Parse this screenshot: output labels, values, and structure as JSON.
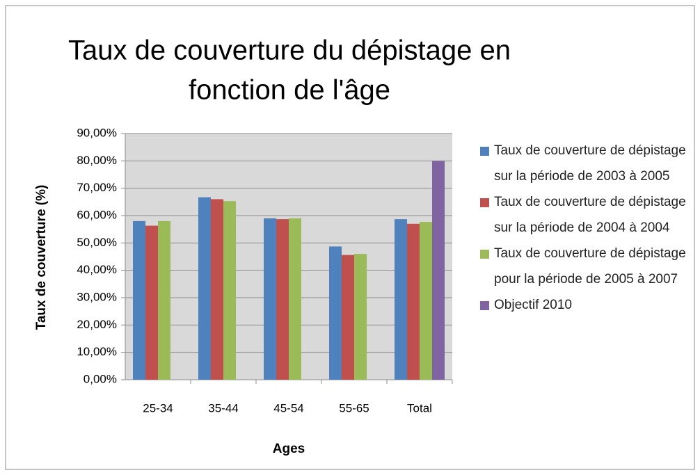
{
  "chart_data": {
    "type": "bar",
    "title": "Taux de couverture du dépistage en fonction de l'âge",
    "title_lines": [
      "Taux de couverture du dépistage en",
      "fonction de l'âge"
    ],
    "x_label": "Ages",
    "y_label": "Taux de couverture (%)",
    "categories": [
      "25-34",
      "35-44",
      "45-54",
      "55-65",
      "Total"
    ],
    "series": [
      {
        "name": "Taux de couverture de dépistage sur la période de 2003 à 2005",
        "color": "#4f81bd",
        "values": [
          58,
          66.7,
          59,
          48.7,
          58.7
        ]
      },
      {
        "name": "Taux de couverture de dépistage sur la période de 2004 à 2004",
        "color": "#c0504d",
        "values": [
          56.3,
          66,
          58.7,
          45.6,
          57
        ]
      },
      {
        "name": "Taux de couverture de dépistage pour la période de 2005 à 2007",
        "color": "#9bbb59",
        "values": [
          58,
          65.3,
          59,
          46,
          57.7
        ]
      },
      {
        "name": "Objectif 2010",
        "color": "#8064a2",
        "values": [
          null,
          null,
          null,
          null,
          80
        ]
      }
    ],
    "ylim": [
      0,
      90
    ],
    "yticks": [
      {
        "value": 0,
        "label": "0,00%"
      },
      {
        "value": 10,
        "label": "10,00%"
      },
      {
        "value": 20,
        "label": "20,00%"
      },
      {
        "value": 30,
        "label": "30,00%"
      },
      {
        "value": 40,
        "label": "40,00%"
      },
      {
        "value": 50,
        "label": "50,00%"
      },
      {
        "value": 60,
        "label": "60,00%"
      },
      {
        "value": 70,
        "label": "70,00%"
      },
      {
        "value": 80,
        "label": "80,00%"
      },
      {
        "value": 90,
        "label": "90,00%"
      }
    ],
    "grid": true,
    "legend": "right"
  }
}
